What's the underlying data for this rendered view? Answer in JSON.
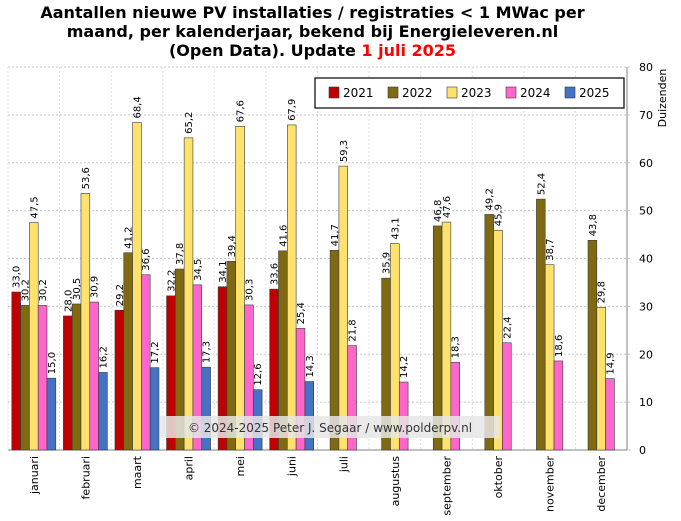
{
  "title": {
    "line1": "Aantallen  nieuwe PV installaties  / registraties  < 1 MWac per",
    "line2": "maand, per kalenderjaar, bekend bij  Energieleveren.nl",
    "line3_pre": "(Open Data). Update",
    "line3_date": "1 juli  2025"
  },
  "copyright": "© 2024-2025  Peter J. Segaar / www.polderpv.nl",
  "chart_data": {
    "type": "bar",
    "ylabel": "Duizenden",
    "ylim": [
      0,
      80
    ],
    "yticks": [
      "0",
      "10",
      "20",
      "30",
      "40",
      "50",
      "60",
      "70",
      "80"
    ],
    "grid": true,
    "legend_position": "top-right",
    "categories": [
      "januari",
      "februari",
      "maart",
      "april",
      "mei",
      "juni",
      "juli",
      "augustus",
      "september",
      "oktober",
      "november",
      "december"
    ],
    "series": [
      {
        "name": "2021",
        "color": "#c00000",
        "values": [
          33.0,
          28.0,
          29.2,
          32.2,
          34.1,
          33.6,
          null,
          null,
          null,
          null,
          null,
          null
        ],
        "labels": [
          "33,0",
          "28,0",
          "29,2",
          "32,2",
          "34,1",
          "33,6",
          "",
          "",
          "",
          "",
          "",
          ""
        ]
      },
      {
        "name": "2022",
        "color": "#7f6a12",
        "values": [
          30.2,
          30.5,
          41.2,
          37.8,
          39.4,
          41.6,
          41.7,
          35.9,
          46.8,
          49.2,
          52.4,
          43.8
        ],
        "labels": [
          "30,2",
          "30,5",
          "41,2",
          "37,8",
          "39,4",
          "41,6",
          "41,7",
          "35,9",
          "46,8",
          "49,2",
          "52,4",
          "43,8"
        ]
      },
      {
        "name": "2023",
        "color": "#ffe26e",
        "values": [
          47.5,
          53.6,
          68.4,
          65.2,
          67.6,
          67.9,
          59.3,
          43.1,
          47.6,
          45.9,
          38.7,
          29.8
        ],
        "labels": [
          "47,5",
          "53,6",
          "68,4",
          "65,2",
          "67,6",
          "67,9",
          "59,3",
          "43,1",
          "47,6",
          "45,9",
          "38,7",
          "29,8"
        ]
      },
      {
        "name": "2024",
        "color": "#ff66cc",
        "values": [
          30.2,
          30.9,
          36.6,
          34.5,
          30.3,
          25.4,
          21.8,
          14.2,
          18.3,
          22.4,
          18.6,
          14.9
        ],
        "labels": [
          "30,2",
          "30,9",
          "36,6",
          "34,5",
          "30,3",
          "25,4",
          "21,8",
          "14,2",
          "18,3",
          "22,4",
          "18,6",
          "14,9"
        ]
      },
      {
        "name": "2025",
        "color": "#4472c4",
        "values": [
          15.0,
          16.2,
          17.2,
          17.3,
          12.6,
          14.3,
          null,
          null,
          null,
          null,
          null,
          null
        ],
        "labels": [
          "15,0",
          "16,2",
          "17,2",
          "17,3",
          "12,6",
          "14,3",
          "",
          "",
          "",
          "",
          "",
          ""
        ]
      }
    ]
  }
}
